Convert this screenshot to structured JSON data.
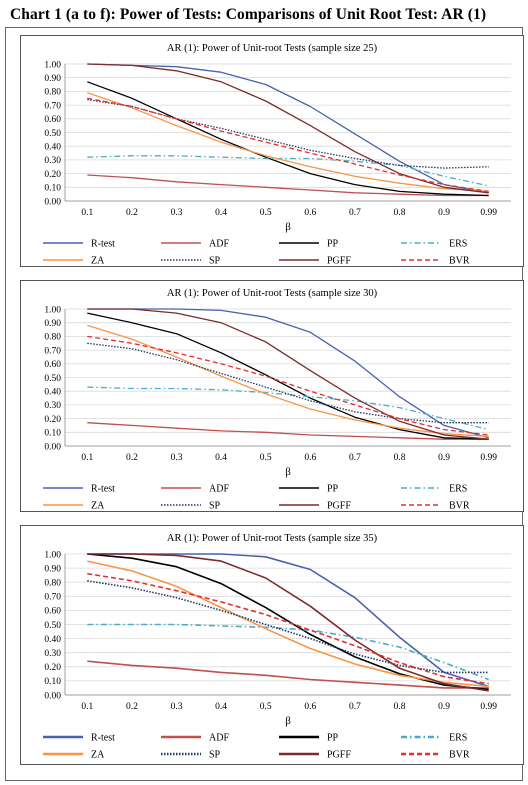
{
  "page": {
    "title": "Chart 1 (a to f): Power of Tests: Comparisons of Unit Root Test: AR (1)"
  },
  "series_styles": [
    {
      "name": "R-test",
      "color": "#4a62ad",
      "dash": ""
    },
    {
      "name": "ADF",
      "color": "#c0504d",
      "dash": ""
    },
    {
      "name": "PP",
      "color": "#000000",
      "dash": ""
    },
    {
      "name": "ERS",
      "color": "#4bacc6",
      "dash": "6,3,1.5,3"
    },
    {
      "name": "ZA",
      "color": "#f79646",
      "dash": ""
    },
    {
      "name": "SP",
      "color": "#1f3864",
      "dash": "1.5,1.5"
    },
    {
      "name": "PGFF",
      "color": "#7b2c2c",
      "dash": ""
    },
    {
      "name": "BVR",
      "color": "#e03030",
      "dash": "5,3"
    }
  ],
  "chart_data": [
    {
      "type": "line",
      "title": "AR (1): Power of Unit-root Tests (sample size 25)",
      "xlabel": "β",
      "ylabel": "",
      "ylim": [
        0,
        1
      ],
      "yticks": [
        "0.00",
        "0.10",
        "0.20",
        "0.30",
        "0.40",
        "0.50",
        "0.60",
        "0.70",
        "0.80",
        "0.90",
        "1.00"
      ],
      "categories": [
        "0.1",
        "0.2",
        "0.3",
        "0.4",
        "0.5",
        "0.6",
        "0.7",
        "0.8",
        "0.9",
        "0.99"
      ],
      "legend_position": "bottom",
      "series": [
        {
          "name": "R-test",
          "values": [
            1.0,
            0.99,
            0.98,
            0.94,
            0.85,
            0.69,
            0.49,
            0.29,
            0.12,
            0.06
          ]
        },
        {
          "name": "ADF",
          "values": [
            0.19,
            0.17,
            0.14,
            0.12,
            0.1,
            0.08,
            0.06,
            0.05,
            0.04,
            0.04
          ]
        },
        {
          "name": "PP",
          "values": [
            0.87,
            0.75,
            0.6,
            0.45,
            0.32,
            0.2,
            0.12,
            0.07,
            0.05,
            0.04
          ]
        },
        {
          "name": "ERS",
          "values": [
            0.32,
            0.33,
            0.33,
            0.32,
            0.31,
            0.31,
            0.29,
            0.26,
            0.18,
            0.11
          ]
        },
        {
          "name": "ZA",
          "values": [
            0.79,
            0.68,
            0.55,
            0.43,
            0.33,
            0.25,
            0.18,
            0.13,
            0.09,
            0.07
          ]
        },
        {
          "name": "SP",
          "values": [
            0.74,
            0.69,
            0.6,
            0.53,
            0.45,
            0.37,
            0.31,
            0.26,
            0.24,
            0.25
          ]
        },
        {
          "name": "PGFF",
          "values": [
            1.0,
            0.99,
            0.95,
            0.87,
            0.73,
            0.55,
            0.36,
            0.2,
            0.1,
            0.06
          ]
        },
        {
          "name": "BVR",
          "values": [
            0.75,
            0.69,
            0.6,
            0.51,
            0.43,
            0.35,
            0.27,
            0.19,
            0.12,
            0.07
          ]
        }
      ]
    },
    {
      "type": "line",
      "title": "AR (1): Power of Unit-root Tests (sample size 30)",
      "xlabel": "β",
      "ylabel": "",
      "ylim": [
        0,
        1
      ],
      "yticks": [
        "0.00",
        "0.10",
        "0.20",
        "0.30",
        "0.40",
        "0.50",
        "0.60",
        "0.70",
        "0.80",
        "0.90",
        "1.00"
      ],
      "categories": [
        "0.1",
        "0.2",
        "0.3",
        "0.4",
        "0.5",
        "0.6",
        "0.7",
        "0.8",
        "0.9",
        "0.99"
      ],
      "legend_position": "bottom",
      "series": [
        {
          "name": "R-test",
          "values": [
            1.0,
            1.0,
            1.0,
            0.99,
            0.94,
            0.83,
            0.62,
            0.36,
            0.15,
            0.06
          ]
        },
        {
          "name": "ADF",
          "values": [
            0.17,
            0.15,
            0.13,
            0.11,
            0.1,
            0.08,
            0.07,
            0.06,
            0.05,
            0.05
          ]
        },
        {
          "name": "PP",
          "values": [
            0.97,
            0.9,
            0.82,
            0.68,
            0.52,
            0.35,
            0.21,
            0.12,
            0.06,
            0.05
          ]
        },
        {
          "name": "ERS",
          "values": [
            0.43,
            0.42,
            0.42,
            0.41,
            0.39,
            0.36,
            0.33,
            0.28,
            0.2,
            0.12
          ]
        },
        {
          "name": "ZA",
          "values": [
            0.88,
            0.78,
            0.65,
            0.51,
            0.38,
            0.27,
            0.19,
            0.13,
            0.09,
            0.07
          ]
        },
        {
          "name": "SP",
          "values": [
            0.75,
            0.71,
            0.63,
            0.53,
            0.43,
            0.33,
            0.25,
            0.2,
            0.17,
            0.17
          ]
        },
        {
          "name": "PGFF",
          "values": [
            1.0,
            1.0,
            0.97,
            0.9,
            0.76,
            0.55,
            0.35,
            0.18,
            0.08,
            0.05
          ]
        },
        {
          "name": "BVR",
          "values": [
            0.8,
            0.75,
            0.68,
            0.6,
            0.51,
            0.4,
            0.3,
            0.2,
            0.12,
            0.08
          ]
        }
      ]
    },
    {
      "type": "line",
      "title": "AR (1): Power of Unit-root Tests (sample size 35)",
      "xlabel": "β",
      "ylabel": "",
      "ylim": [
        0,
        1
      ],
      "yticks": [
        "0.00",
        "0.10",
        "0.20",
        "0.30",
        "0.40",
        "0.50",
        "0.60",
        "0.70",
        "0.80",
        "0.90",
        "1.00"
      ],
      "categories": [
        "0.1",
        "0.2",
        "0.3",
        "0.4",
        "0.5",
        "0.6",
        "0.7",
        "0.8",
        "0.9",
        "0.99"
      ],
      "legend_position": "bottom",
      "series": [
        {
          "name": "R-test",
          "values": [
            1.0,
            1.0,
            1.0,
            1.0,
            0.98,
            0.89,
            0.69,
            0.41,
            0.16,
            0.06
          ]
        },
        {
          "name": "ADF",
          "values": [
            0.24,
            0.21,
            0.19,
            0.16,
            0.14,
            0.11,
            0.09,
            0.07,
            0.05,
            0.05
          ]
        },
        {
          "name": "PP",
          "values": [
            1.0,
            0.97,
            0.91,
            0.79,
            0.62,
            0.43,
            0.27,
            0.15,
            0.07,
            0.04
          ]
        },
        {
          "name": "ERS",
          "values": [
            0.5,
            0.5,
            0.5,
            0.49,
            0.48,
            0.46,
            0.41,
            0.34,
            0.23,
            0.11
          ]
        },
        {
          "name": "ZA",
          "values": [
            0.95,
            0.88,
            0.77,
            0.62,
            0.47,
            0.33,
            0.22,
            0.14,
            0.09,
            0.06
          ]
        },
        {
          "name": "SP",
          "values": [
            0.81,
            0.76,
            0.69,
            0.6,
            0.5,
            0.4,
            0.29,
            0.21,
            0.16,
            0.16
          ]
        },
        {
          "name": "PGFF",
          "values": [
            1.0,
            1.0,
            0.99,
            0.95,
            0.83,
            0.63,
            0.39,
            0.19,
            0.08,
            0.03
          ]
        },
        {
          "name": "BVR",
          "values": [
            0.86,
            0.81,
            0.74,
            0.66,
            0.57,
            0.46,
            0.35,
            0.23,
            0.13,
            0.08
          ]
        }
      ]
    }
  ]
}
